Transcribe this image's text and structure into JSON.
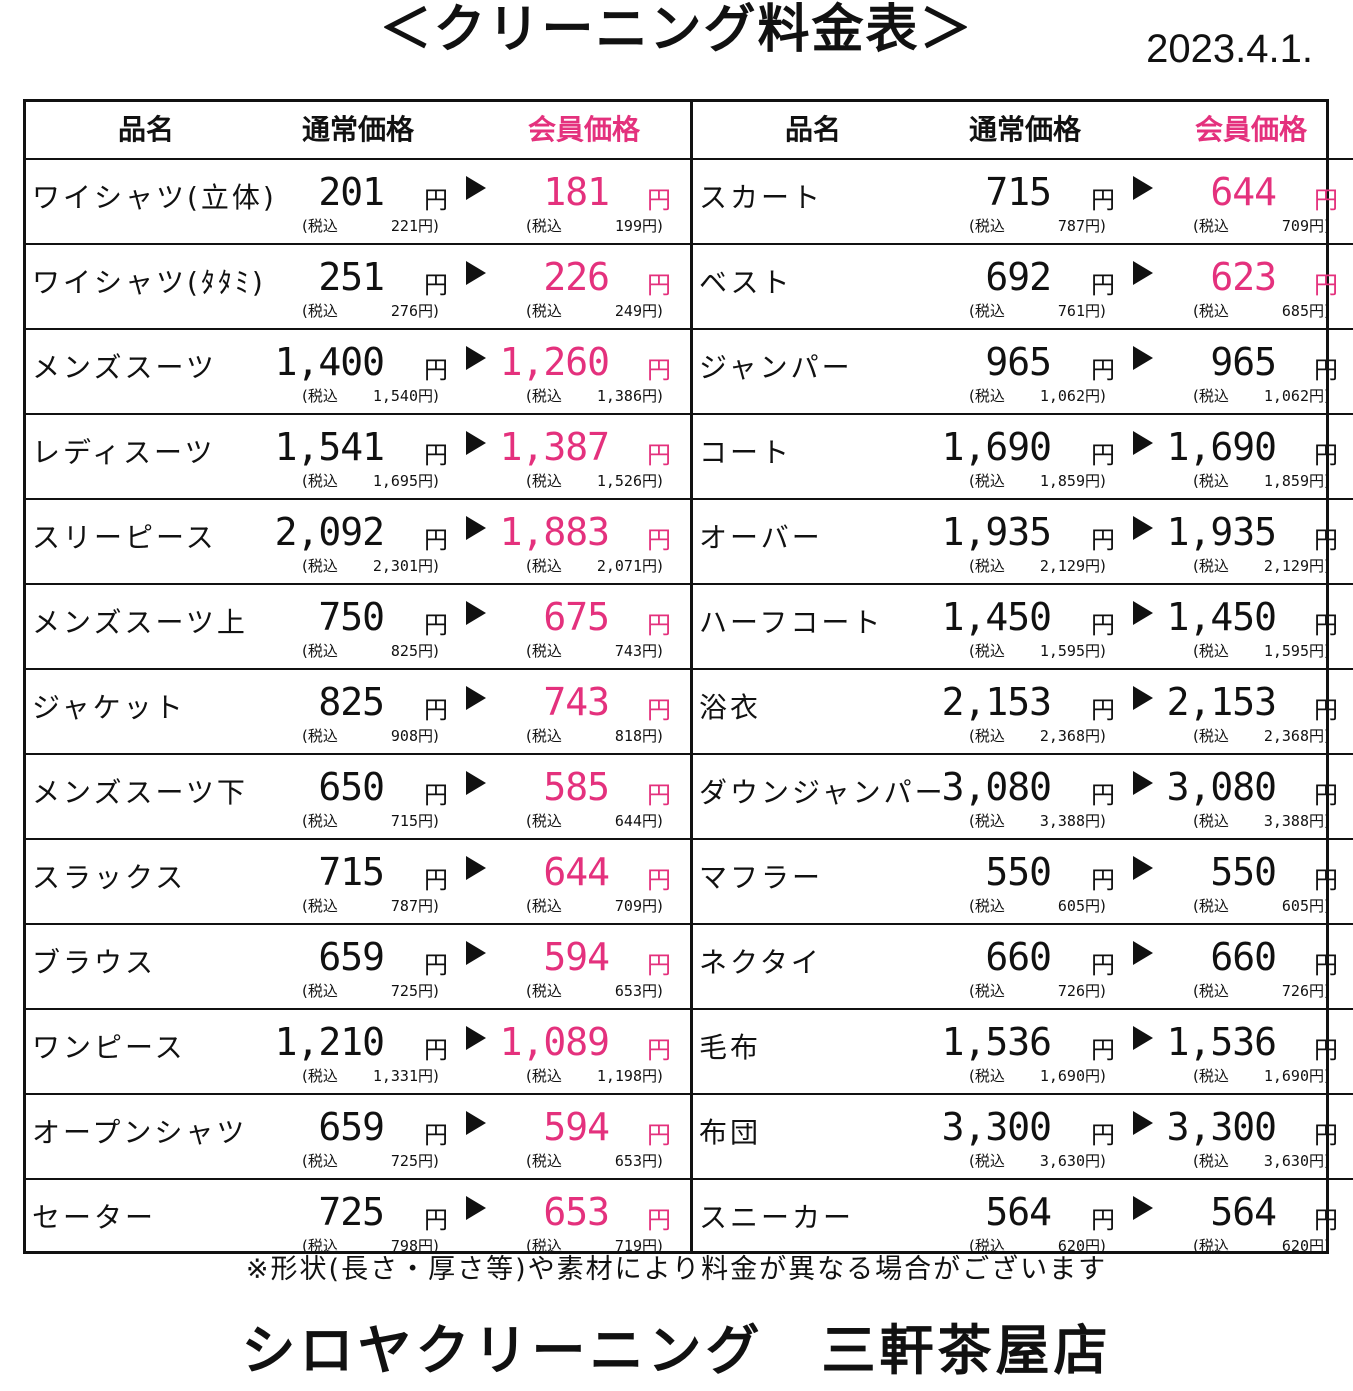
{
  "title": "＜クリーニング料金表＞",
  "date": "2023.4.1.",
  "headers": {
    "name": "品名",
    "regular": "通常価格",
    "member": "会員価格"
  },
  "labels": {
    "yen": "円",
    "tax_open": "(税込",
    "tax_close": "円)"
  },
  "colors": {
    "member_accent": "#e4317d",
    "text": "#111111"
  },
  "left_items": [
    {
      "name": "ワイシャツ(立体)",
      "regular": "201",
      "regular_tax": "221",
      "member": "181",
      "member_tax": "199"
    },
    {
      "name": "ワイシャツ(ﾀﾀﾐ)",
      "regular": "251",
      "regular_tax": "276",
      "member": "226",
      "member_tax": "249"
    },
    {
      "name": "メンズスーツ",
      "regular": "1,400",
      "regular_tax": "1,540",
      "member": "1,260",
      "member_tax": "1,386"
    },
    {
      "name": "レディスーツ",
      "regular": "1,541",
      "regular_tax": "1,695",
      "member": "1,387",
      "member_tax": "1,526"
    },
    {
      "name": "スリーピース",
      "regular": "2,092",
      "regular_tax": "2,301",
      "member": "1,883",
      "member_tax": "2,071"
    },
    {
      "name": "メンズスーツ上",
      "regular": "750",
      "regular_tax": "825",
      "member": "675",
      "member_tax": "743"
    },
    {
      "name": "ジャケット",
      "regular": "825",
      "regular_tax": "908",
      "member": "743",
      "member_tax": "818"
    },
    {
      "name": "メンズスーツ下",
      "regular": "650",
      "regular_tax": "715",
      "member": "585",
      "member_tax": "644"
    },
    {
      "name": "スラックス",
      "regular": "715",
      "regular_tax": "787",
      "member": "644",
      "member_tax": "709"
    },
    {
      "name": "ブラウス",
      "regular": "659",
      "regular_tax": "725",
      "member": "594",
      "member_tax": "653"
    },
    {
      "name": "ワンピース",
      "regular": "1,210",
      "regular_tax": "1,331",
      "member": "1,089",
      "member_tax": "1,198"
    },
    {
      "name": "オープンシャツ",
      "regular": "659",
      "regular_tax": "725",
      "member": "594",
      "member_tax": "653"
    },
    {
      "name": "セーター",
      "regular": "725",
      "regular_tax": "798",
      "member": "653",
      "member_tax": "719"
    }
  ],
  "right_items": [
    {
      "name": "スカート",
      "regular": "715",
      "regular_tax": "787",
      "member": "644",
      "member_tax": "709",
      "member_pink": true
    },
    {
      "name": "ベスト",
      "regular": "692",
      "regular_tax": "761",
      "member": "623",
      "member_tax": "685",
      "member_pink": true
    },
    {
      "name": "ジャンパー",
      "regular": "965",
      "regular_tax": "1,062",
      "member": "965",
      "member_tax": "1,062",
      "member_pink": false
    },
    {
      "name": "コート",
      "regular": "1,690",
      "regular_tax": "1,859",
      "member": "1,690",
      "member_tax": "1,859",
      "member_pink": false
    },
    {
      "name": "オーバー",
      "regular": "1,935",
      "regular_tax": "2,129",
      "member": "1,935",
      "member_tax": "2,129",
      "member_pink": false
    },
    {
      "name": "ハーフコート",
      "regular": "1,450",
      "regular_tax": "1,595",
      "member": "1,450",
      "member_tax": "1,595",
      "member_pink": false
    },
    {
      "name": "浴衣",
      "regular": "2,153",
      "regular_tax": "2,368",
      "member": "2,153",
      "member_tax": "2,368",
      "member_pink": false
    },
    {
      "name": "ダウンジャンパー",
      "regular": "3,080",
      "regular_tax": "3,388",
      "member": "3,080",
      "member_tax": "3,388",
      "member_pink": false
    },
    {
      "name": "マフラー",
      "regular": "550",
      "regular_tax": "605",
      "member": "550",
      "member_tax": "605",
      "member_pink": false
    },
    {
      "name": "ネクタイ",
      "regular": "660",
      "regular_tax": "726",
      "member": "660",
      "member_tax": "726",
      "member_pink": false
    },
    {
      "name": "毛布",
      "regular": "1,536",
      "regular_tax": "1,690",
      "member": "1,536",
      "member_tax": "1,690",
      "member_pink": false
    },
    {
      "name": "布団",
      "regular": "3,300",
      "regular_tax": "3,630",
      "member": "3,300",
      "member_tax": "3,630",
      "member_pink": false
    },
    {
      "name": "スニーカー",
      "regular": "564",
      "regular_tax": "620",
      "member": "564",
      "member_tax": "620",
      "member_pink": false
    }
  ],
  "footnote": "※形状(長さ・厚さ等)や素材により料金が異なる場合がございます",
  "store_name": "シロヤクリーニング　三軒茶屋店"
}
